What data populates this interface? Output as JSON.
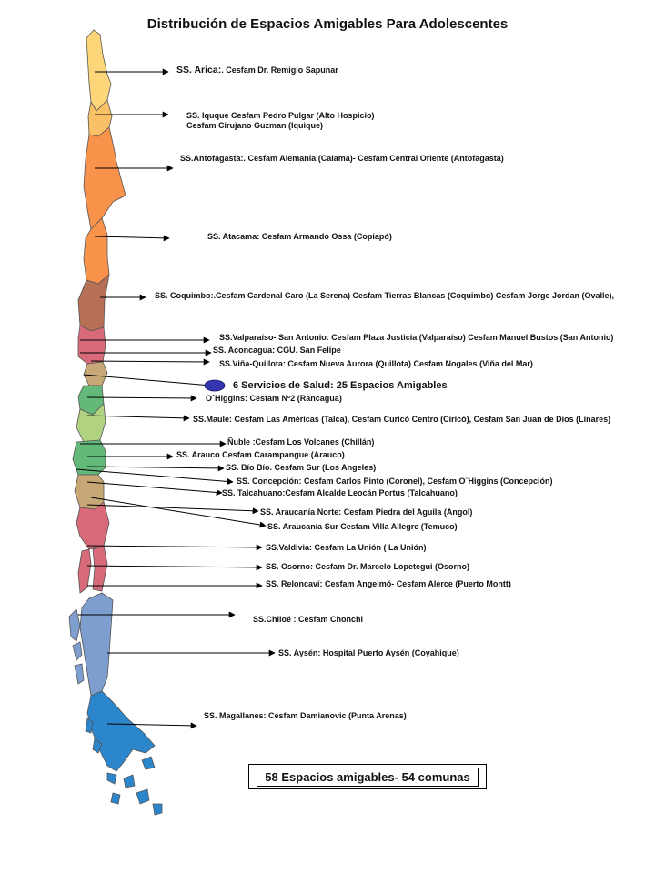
{
  "title": "Distribución de Espacios Amigables Para Adolescentes",
  "legend": {
    "marker_color": "#3636b3"
  },
  "summary": "6 Servicios de Salud: 25 Espacios  Amigables",
  "totals": "58 Espacios amigables- 54 comunas",
  "labels": [
    {
      "lead": "SS. Arica:",
      "rest": ". Cesfam Dr. Remigio Sapunar"
    },
    {
      "line1": "SS. Iquque Cesfam Pedro Pulgar (Alto Hospicio)",
      "line2": "Cesfam Cirujano Guzman (Iquique)"
    },
    {
      "text": "SS.Antofagasta:. Cesfam Alemania (Calama)-  Cesfam Central Oriente (Antofagasta)"
    },
    {
      "text": "SS. Atacama:  Cesfam Armando Ossa (Copiapó)"
    },
    {
      "text": "SS. Coquimbo:.Cesfam Cardenal Caro (La Serena) Cesfam Tierras Blancas  (Coquimbo) Cesfam Jorge Jordan (Ovalle),"
    },
    {
      "text": "SS.Valparaíso- San Antonio:   Cesfam Plaza Justicia  (Valparaíso) Cesfam Manuel Bustos (San Antonio)"
    },
    {
      "text": "SS. Aconcagua: CGU. San Felipe"
    },
    {
      "text": "SS.Viña-Quillota: Cesfam Nueva Aurora (Quillota)    Cesfam Nogales (Viña del Mar)"
    },
    {
      "text": "O´Higgins: Cesfam Nº2 (Rancagua)"
    },
    {
      "text": "SS.Maule: Cesfam Las Américas (Talca), Cesfam Curicó Centro (Ciricó), Cesfam San Juan de Dios (Linares)"
    },
    {
      "text": "Ñuble :Cesfam  Los Volcanes (Chillán)"
    },
    {
      "text": "SS. Arauco Cesfam Carampangue (Arauco)"
    },
    {
      "text": "SS. Bío Bío. Cesfam Sur (Los Angeles)"
    },
    {
      "text": "SS. Concepción: Cesfam Carlos Pinto (Coronel), Cesfam O¨Higgins (Concepción)"
    },
    {
      "text": "SS. Talcahuano:Cesfam Alcalde Leocán Portus (Talcahuano)"
    },
    {
      "text": "SS. Araucanía Norte: Cesfam Piedra del Aguila (Angol)"
    },
    {
      "text": "SS. Araucanía Sur  Cesfam  Villa Allegre (Temuco)"
    },
    {
      "text": "SS.Valdivia: Cesfam La Unión ( La Unión)"
    },
    {
      "text": "SS. Osorno: Cesfam Dr. Marcelo Lopetegui (Osorno)"
    },
    {
      "text": "SS. Reloncaví: Cesfam Angelmó-  Cesfam Alerce (Puerto Montt)"
    },
    {
      "text": "SS.Chiloé : Cesfam Chonchi"
    },
    {
      "text": "SS. Aysén:  Hospital Puerto Aysén (Coyahique)"
    },
    {
      "text": "SS. Magallanes: Cesfam Damianovic (Punta Arenas)"
    }
  ]
}
